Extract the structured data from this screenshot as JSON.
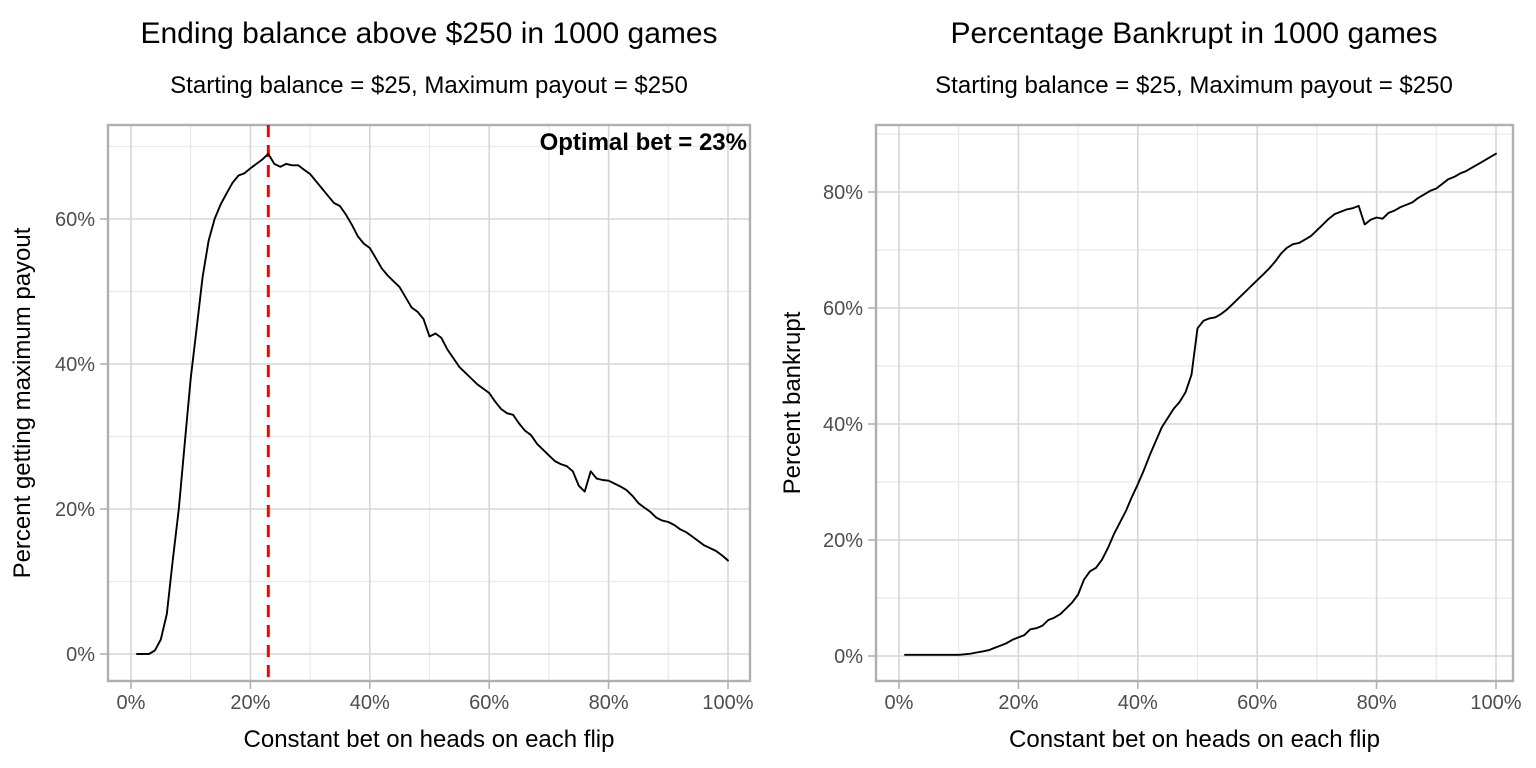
{
  "style": {
    "background": "#ffffff",
    "grid_major_color": "#d6d6d6",
    "grid_minor_color": "#e9e9e9",
    "panel_border_color": "#b0b0b0",
    "tick_mark_color": "#b3b3b3",
    "tick_label_color": "#4d4d4d",
    "line_color": "#000000",
    "optimal_line_color": "#ff0000",
    "text_color": "#000000"
  },
  "chart_data": [
    {
      "type": "line",
      "title": "Ending balance above $250 in 1000 games",
      "subtitle": "Starting balance = $25, Maximum payout = $250",
      "xlabel": "Constant bet on heads on each flip",
      "ylabel": "Percent getting maximum payout",
      "xlim": [
        -4,
        104
      ],
      "ylim": [
        -4,
        73
      ],
      "x_ticks": [
        0,
        20,
        40,
        60,
        80,
        100
      ],
      "x_tick_labels": [
        "0%",
        "20%",
        "40%",
        "60%",
        "80%",
        "100%"
      ],
      "x_minor_ticks": [
        10,
        30,
        50,
        70,
        90
      ],
      "y_ticks": [
        0,
        20,
        40,
        60
      ],
      "y_tick_labels": [
        "0%",
        "20%",
        "40%",
        "60%"
      ],
      "y_minor_ticks": [
        10,
        30,
        50,
        70
      ],
      "grid": true,
      "legend": "none",
      "annotation": {
        "text": "Optimal bet = 23%",
        "x": 100,
        "y": 71,
        "bold": true
      },
      "vline": {
        "x": 23,
        "color": "#ff0000",
        "style": "dashed"
      },
      "series": [
        {
          "name": "percent getting maximum payout",
          "color": "#000000",
          "x": [
            1,
            2,
            3,
            4,
            5,
            6,
            7,
            8,
            9,
            10,
            11,
            12,
            13,
            14,
            15,
            16,
            17,
            18,
            19,
            20,
            21,
            22,
            23,
            24,
            25,
            26,
            27,
            28,
            29,
            30,
            31,
            32,
            33,
            34,
            35,
            36,
            37,
            38,
            39,
            40,
            41,
            42,
            43,
            44,
            45,
            46,
            47,
            48,
            49,
            50,
            51,
            52,
            53,
            54,
            55,
            56,
            57,
            58,
            59,
            60,
            61,
            62,
            63,
            64,
            65,
            66,
            67,
            68,
            69,
            70,
            71,
            72,
            73,
            74,
            75,
            76,
            77,
            78,
            79,
            80,
            81,
            82,
            83,
            84,
            85,
            86,
            87,
            88,
            89,
            90,
            91,
            92,
            93,
            94,
            95,
            96,
            97,
            98,
            99,
            100
          ],
          "y": [
            0,
            0,
            0,
            0.5,
            2,
            5.5,
            13,
            20,
            29,
            38,
            45,
            52,
            57,
            60,
            62,
            63.5,
            65,
            66,
            66.3,
            67,
            67.6,
            68.2,
            69,
            67.6,
            67.2,
            67.6,
            67.4,
            67.4,
            66.8,
            66.2,
            65.2,
            64.2,
            63.2,
            62.2,
            61.8,
            60.6,
            59.2,
            57.6,
            56.6,
            56,
            54.6,
            53.2,
            52.2,
            51.4,
            50.6,
            49.2,
            47.8,
            47.2,
            46.2,
            43.8,
            44.2,
            43.6,
            42,
            40.8,
            39.6,
            38.8,
            38,
            37.2,
            36.6,
            36,
            34.8,
            33.8,
            33.2,
            33,
            31.8,
            30.8,
            30.2,
            29,
            28.2,
            27.4,
            26.6,
            26.2,
            25.9,
            25.2,
            23.2,
            22.4,
            25.2,
            24.2,
            24,
            23.9,
            23.5,
            23.1,
            22.6,
            21.8,
            20.8,
            20.2,
            19.6,
            18.8,
            18.4,
            18.2,
            17.8,
            17.2,
            16.8,
            16.2,
            15.6,
            15,
            14.6,
            14.2,
            13.6,
            12.9
          ]
        }
      ]
    },
    {
      "type": "line",
      "title": "Percentage Bankrupt in 1000 games",
      "subtitle": "Starting balance = $25, Maximum payout = $250",
      "xlabel": "Constant bet on heads on each flip",
      "ylabel": "Percent bankrupt",
      "xlim": [
        -4,
        104
      ],
      "ylim": [
        -4,
        92
      ],
      "x_ticks": [
        0,
        20,
        40,
        60,
        80,
        100
      ],
      "x_tick_labels": [
        "0%",
        "20%",
        "40%",
        "60%",
        "80%",
        "100%"
      ],
      "x_minor_ticks": [
        10,
        30,
        50,
        70,
        90
      ],
      "y_ticks": [
        0,
        20,
        40,
        60,
        80
      ],
      "y_tick_labels": [
        "0%",
        "20%",
        "40%",
        "60%",
        "80%"
      ],
      "y_minor_ticks": [
        10,
        30,
        50,
        70,
        90
      ],
      "grid": true,
      "legend": "none",
      "annotation": null,
      "vline": null,
      "series": [
        {
          "name": "percent bankrupt",
          "color": "#000000",
          "x": [
            1,
            2,
            3,
            4,
            5,
            6,
            7,
            8,
            9,
            10,
            11,
            12,
            13,
            14,
            15,
            16,
            17,
            18,
            19,
            20,
            21,
            22,
            23,
            24,
            25,
            26,
            27,
            28,
            29,
            30,
            31,
            32,
            33,
            34,
            35,
            36,
            37,
            38,
            39,
            40,
            41,
            42,
            43,
            44,
            45,
            46,
            47,
            48,
            49,
            50,
            51,
            52,
            53,
            54,
            55,
            56,
            57,
            58,
            59,
            60,
            61,
            62,
            63,
            64,
            65,
            66,
            67,
            68,
            69,
            70,
            71,
            72,
            73,
            74,
            75,
            76,
            77,
            78,
            79,
            80,
            81,
            82,
            83,
            84,
            85,
            86,
            87,
            88,
            89,
            90,
            91,
            92,
            93,
            94,
            95,
            96,
            97,
            98,
            99,
            100
          ],
          "y": [
            0.2,
            0.2,
            0.2,
            0.2,
            0.2,
            0.2,
            0.2,
            0.2,
            0.2,
            0.2,
            0.3,
            0.4,
            0.6,
            0.8,
            1,
            1.4,
            1.8,
            2.2,
            2.8,
            3.2,
            3.6,
            4.6,
            4.8,
            5.2,
            6.2,
            6.6,
            7.2,
            8.2,
            9.2,
            10.6,
            13.2,
            14.6,
            15.2,
            16.6,
            18.6,
            21,
            23,
            25,
            27.4,
            29.6,
            32,
            34.6,
            37,
            39.4,
            41,
            42.6,
            43.8,
            45.5,
            48.5,
            56.5,
            57.8,
            58.2,
            58.4,
            59,
            59.8,
            60.8,
            61.8,
            62.8,
            63.8,
            64.8,
            65.8,
            66.8,
            68,
            69.4,
            70.4,
            71,
            71.2,
            71.8,
            72.4,
            73.4,
            74.4,
            75.4,
            76.2,
            76.6,
            77,
            77.2,
            77.6,
            74.4,
            75.2,
            75.6,
            75.4,
            76.4,
            76.8,
            77.4,
            77.8,
            78.2,
            79,
            79.6,
            80.2,
            80.6,
            81.4,
            82.2,
            82.6,
            83.2,
            83.6,
            84.2,
            84.8,
            85.4,
            86,
            86.6
          ]
        }
      ]
    }
  ]
}
